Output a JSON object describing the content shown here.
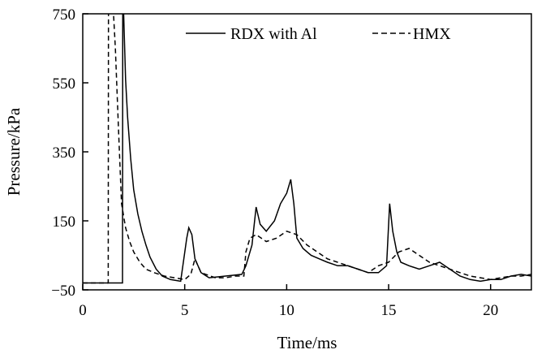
{
  "chart_data": {
    "type": "line",
    "xlabel": "Time/ms",
    "ylabel": "Pressure/kPa",
    "xlim": [
      0,
      22
    ],
    "ylim": [
      -50,
      750
    ],
    "x_ticks": [
      0,
      5,
      10,
      15,
      20
    ],
    "y_ticks": [
      -50,
      150,
      350,
      550,
      750
    ],
    "x_tick_labels": [
      "0",
      "5",
      "10",
      "15",
      "20"
    ],
    "y_tick_labels": [
      "−50",
      "150",
      "350",
      "550",
      "750"
    ],
    "legend_position": "top-right",
    "grid": false,
    "series": [
      {
        "name": "RDX with Al",
        "style": "solid",
        "color": "#000000",
        "x": [
          0,
          1.95,
          1.96,
          2.0,
          2.1,
          2.2,
          2.35,
          2.5,
          2.7,
          2.9,
          3.1,
          3.3,
          3.6,
          3.9,
          4.3,
          4.8,
          5.1,
          5.2,
          5.35,
          5.5,
          5.8,
          6.2,
          7.0,
          7.8,
          8.0,
          8.3,
          8.5,
          8.7,
          9.0,
          9.4,
          9.7,
          10.0,
          10.2,
          10.35,
          10.5,
          10.8,
          11.2,
          11.6,
          12.0,
          12.5,
          13.0,
          13.5,
          14.0,
          14.5,
          14.9,
          15.05,
          15.2,
          15.4,
          15.6,
          16.0,
          16.5,
          17.0,
          17.5,
          18.0,
          18.5,
          19.0,
          19.5,
          20.0,
          20.5,
          21.0,
          21.5,
          22.0
        ],
        "y": [
          -30,
          -30,
          760,
          760,
          560,
          450,
          330,
          240,
          170,
          120,
          80,
          45,
          10,
          -10,
          -20,
          -25,
          100,
          130,
          110,
          40,
          0,
          -15,
          -10,
          -5,
          20,
          80,
          190,
          140,
          120,
          150,
          200,
          230,
          270,
          200,
          100,
          70,
          50,
          40,
          30,
          20,
          20,
          10,
          0,
          0,
          20,
          200,
          120,
          60,
          30,
          20,
          10,
          20,
          30,
          10,
          -10,
          -20,
          -25,
          -20,
          -20,
          -10,
          -5,
          -10
        ]
      },
      {
        "name": "HMX",
        "style": "dashed",
        "color": "#000000",
        "x": [
          0,
          1.25,
          1.26,
          1.5,
          1.6,
          1.75,
          1.9,
          2.1,
          2.3,
          2.5,
          2.8,
          3.1,
          3.5,
          4.0,
          4.5,
          5.0,
          5.3,
          5.5,
          5.8,
          6.5,
          7.0,
          7.5,
          7.9,
          8.0,
          8.2,
          8.5,
          9.0,
          9.5,
          10.0,
          10.5,
          11.0,
          11.5,
          12.0,
          12.5,
          13.0,
          13.5,
          14.0,
          14.5,
          15.0,
          15.5,
          16.0,
          16.5,
          17.0,
          17.5,
          18.0,
          18.5,
          19.0,
          19.5,
          20.0,
          20.5,
          21.0,
          21.5,
          22.0
        ],
        "y": [
          -30,
          -30,
          760,
          760,
          650,
          420,
          200,
          130,
          90,
          60,
          30,
          10,
          0,
          -10,
          -15,
          -20,
          -5,
          40,
          0,
          -15,
          -15,
          -10,
          -10,
          60,
          100,
          110,
          90,
          100,
          120,
          110,
          80,
          60,
          40,
          30,
          20,
          10,
          0,
          20,
          30,
          60,
          70,
          50,
          30,
          20,
          10,
          0,
          -10,
          -15,
          -20,
          -15,
          -10,
          -10,
          -5
        ]
      }
    ]
  }
}
